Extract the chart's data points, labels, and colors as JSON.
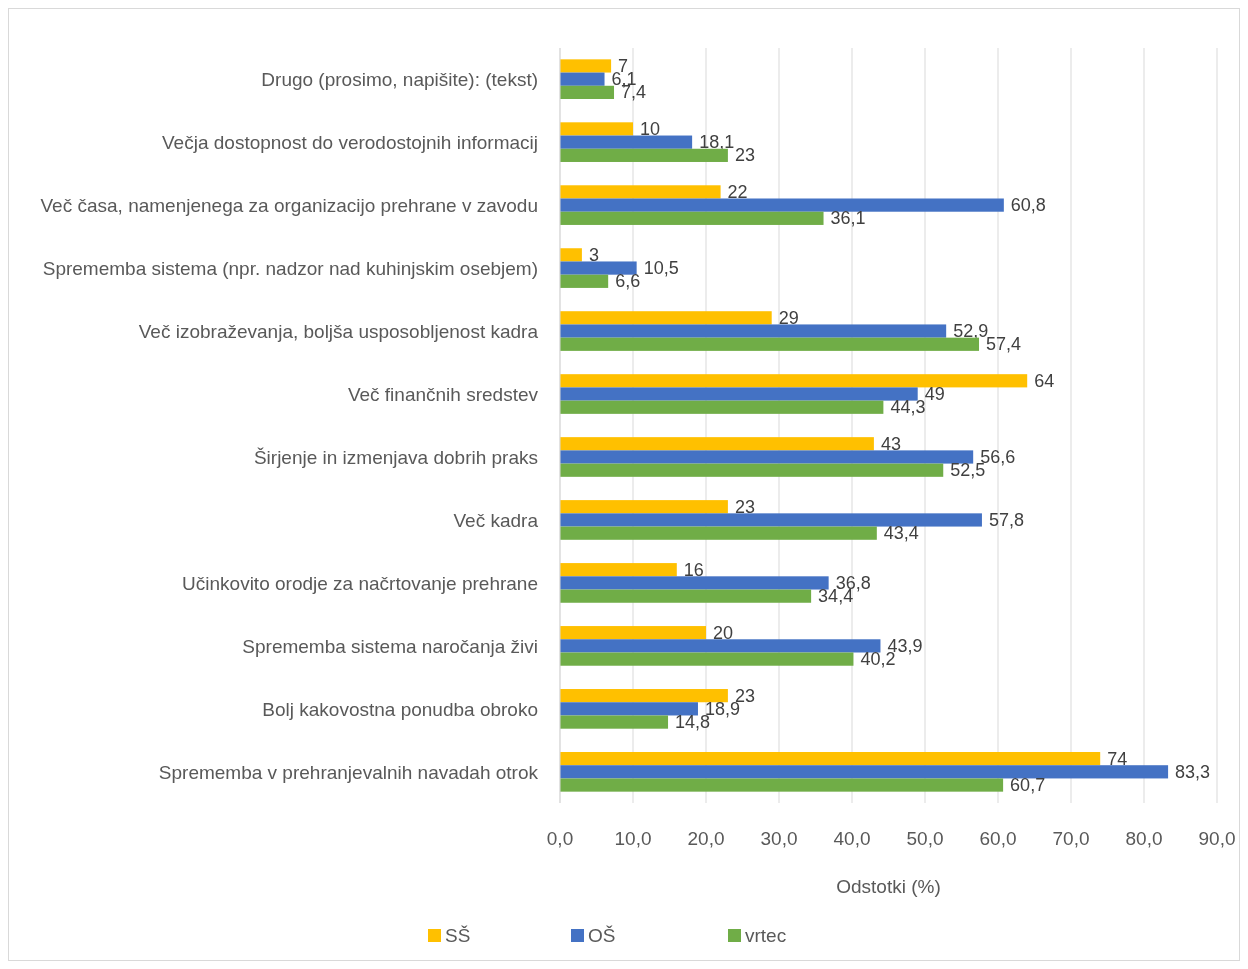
{
  "chart_data": {
    "type": "bar",
    "orientation": "horizontal",
    "xlabel": "Odstotki (%)",
    "categories": [
      "Drugo (prosimo, napišite): (tekst)",
      "Večja dostopnost do verodostojnih informacij",
      "Več časa, namenjenega za organizacijo prehrane v zavodu",
      "Sprememba sistema (npr. nadzor nad kuhinjskim osebjem)",
      "Več izobraževanja, boljša usposobljenost kadra",
      "Več finančnih sredstev",
      "Širjenje in izmenjava dobrih praks",
      "Več kadra",
      "Učinkovito orodje za načrtovanje prehrane",
      "Sprememba sistema naročanja živi",
      "Bolj kakovostna ponudba obroko",
      "Sprememba v prehranjevalnih navadah otrok"
    ],
    "series": [
      {
        "name": "SŠ",
        "color": "#ffc000",
        "values": [
          7,
          10,
          22,
          3,
          29,
          64,
          43,
          23,
          16,
          20,
          23,
          74
        ],
        "value_labels": [
          "7",
          "10",
          "22",
          "3",
          "29",
          "64",
          "43",
          "23",
          "16",
          "20",
          "23",
          "74"
        ]
      },
      {
        "name": "OŠ",
        "color": "#4472c4",
        "values": [
          6.1,
          18.1,
          60.8,
          10.5,
          52.9,
          49,
          56.6,
          57.8,
          36.8,
          43.9,
          18.9,
          83.3
        ],
        "value_labels": [
          "6,1",
          "18,1",
          "60,8",
          "10,5",
          "52,9",
          "49",
          "56,6",
          "57,8",
          "36,8",
          "43,9",
          "18,9",
          "83,3"
        ]
      },
      {
        "name": "vrtec",
        "color": "#70ad47",
        "values": [
          7.4,
          23,
          36.1,
          6.6,
          57.4,
          44.3,
          52.5,
          43.4,
          34.4,
          40.2,
          14.8,
          60.7
        ],
        "value_labels": [
          "7,4",
          "23",
          "36,1",
          "6,6",
          "57,4",
          "44,3",
          "52,5",
          "43,4",
          "34,4",
          "40,2",
          "14,8",
          "60,7"
        ]
      }
    ],
    "xlim": [
      0,
      90
    ],
    "xticks": [
      {
        "value": 0,
        "label": "0,0"
      },
      {
        "value": 10,
        "label": "10,0"
      },
      {
        "value": 20,
        "label": "20,0"
      },
      {
        "value": 30,
        "label": "30,0"
      },
      {
        "value": 40,
        "label": "40,0"
      },
      {
        "value": 50,
        "label": "50,0"
      },
      {
        "value": 60,
        "label": "60,0"
      },
      {
        "value": 70,
        "label": "70,0"
      },
      {
        "value": 80,
        "label": "80,0"
      },
      {
        "value": 90,
        "label": "90,0"
      }
    ],
    "grid": "x",
    "legend": "bottom"
  }
}
